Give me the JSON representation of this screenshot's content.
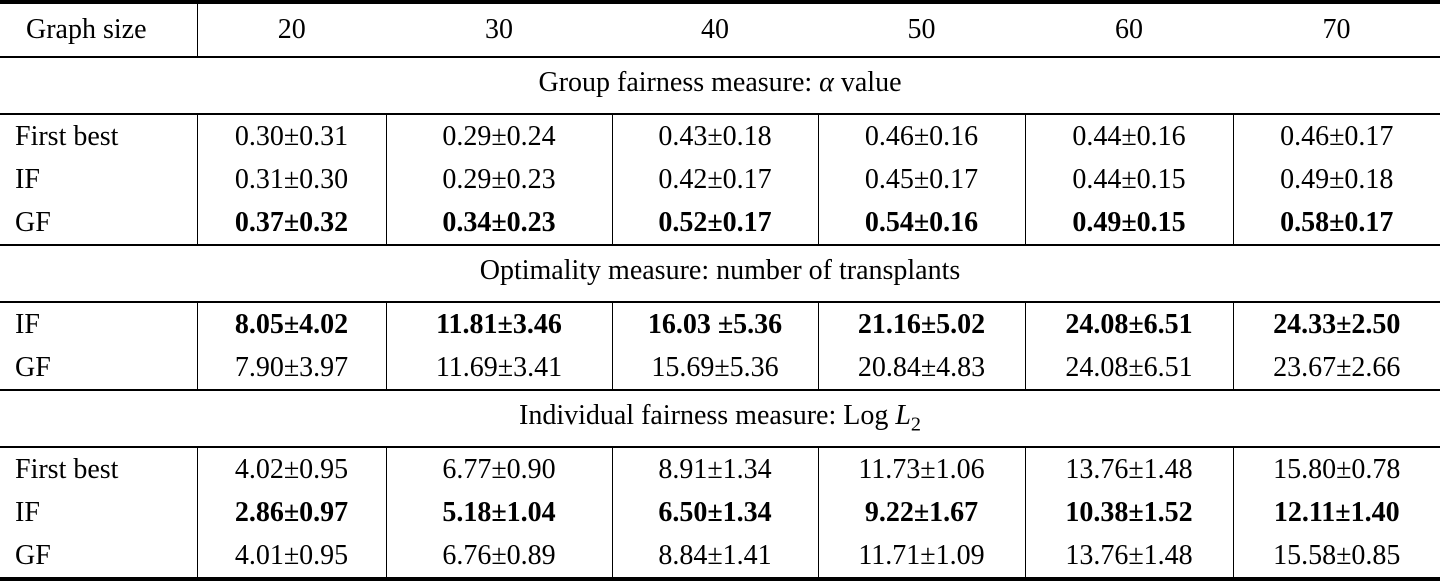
{
  "table": {
    "colors": {
      "text": "#000000",
      "background": "#ffffff",
      "rule": "#000000"
    },
    "header": {
      "label": "Graph size",
      "columns": [
        "20",
        "30",
        "40",
        "50",
        "60",
        "70"
      ]
    },
    "sections": [
      {
        "title": {
          "pre": "Group fairness measure: ",
          "var": "α",
          "sub": "",
          "post": " value"
        },
        "rows": [
          {
            "label": "First best",
            "bold": false,
            "values": [
              "0.30±0.31",
              "0.29±0.24",
              "0.43±0.18",
              "0.46±0.16",
              "0.44±0.16",
              "0.46±0.17"
            ]
          },
          {
            "label": "IF",
            "bold": false,
            "values": [
              "0.31±0.30",
              "0.29±0.23",
              "0.42±0.17",
              "0.45±0.17",
              "0.44±0.15",
              "0.49±0.18"
            ]
          },
          {
            "label": "GF",
            "bold": true,
            "values": [
              "0.37±0.32",
              "0.34±0.23",
              "0.52±0.17",
              "0.54±0.16",
              "0.49±0.15",
              "0.58±0.17"
            ]
          }
        ]
      },
      {
        "title": {
          "pre": "Optimality measure: number of transplants",
          "var": "",
          "sub": "",
          "post": ""
        },
        "rows": [
          {
            "label": "IF",
            "bold": true,
            "values": [
              "8.05±4.02",
              "11.81±3.46",
              "16.03 ±5.36",
              "21.16±5.02",
              "24.08±6.51",
              "24.33±2.50"
            ]
          },
          {
            "label": "GF",
            "bold": false,
            "values": [
              "7.90±3.97",
              "11.69±3.41",
              "15.69±5.36",
              "20.84±4.83",
              "24.08±6.51",
              "23.67±2.66"
            ]
          }
        ]
      },
      {
        "title": {
          "pre": "Individual fairness measure: Log ",
          "var": "L",
          "sub": "2",
          "post": ""
        },
        "rows": [
          {
            "label": "First best",
            "bold": false,
            "values": [
              "4.02±0.95",
              "6.77±0.90",
              "8.91±1.34",
              "11.73±1.06",
              "13.76±1.48",
              "15.80±0.78"
            ]
          },
          {
            "label": "IF",
            "bold": true,
            "values": [
              "2.86±0.97",
              "5.18±1.04",
              "6.50±1.34",
              "9.22±1.67",
              "10.38±1.52",
              "12.11±1.40"
            ]
          },
          {
            "label": "GF",
            "bold": false,
            "values": [
              "4.01±0.95",
              "6.76±0.89",
              "8.84±1.41",
              "11.71±1.09",
              "13.76±1.48",
              "15.58±0.85"
            ]
          }
        ]
      }
    ]
  }
}
